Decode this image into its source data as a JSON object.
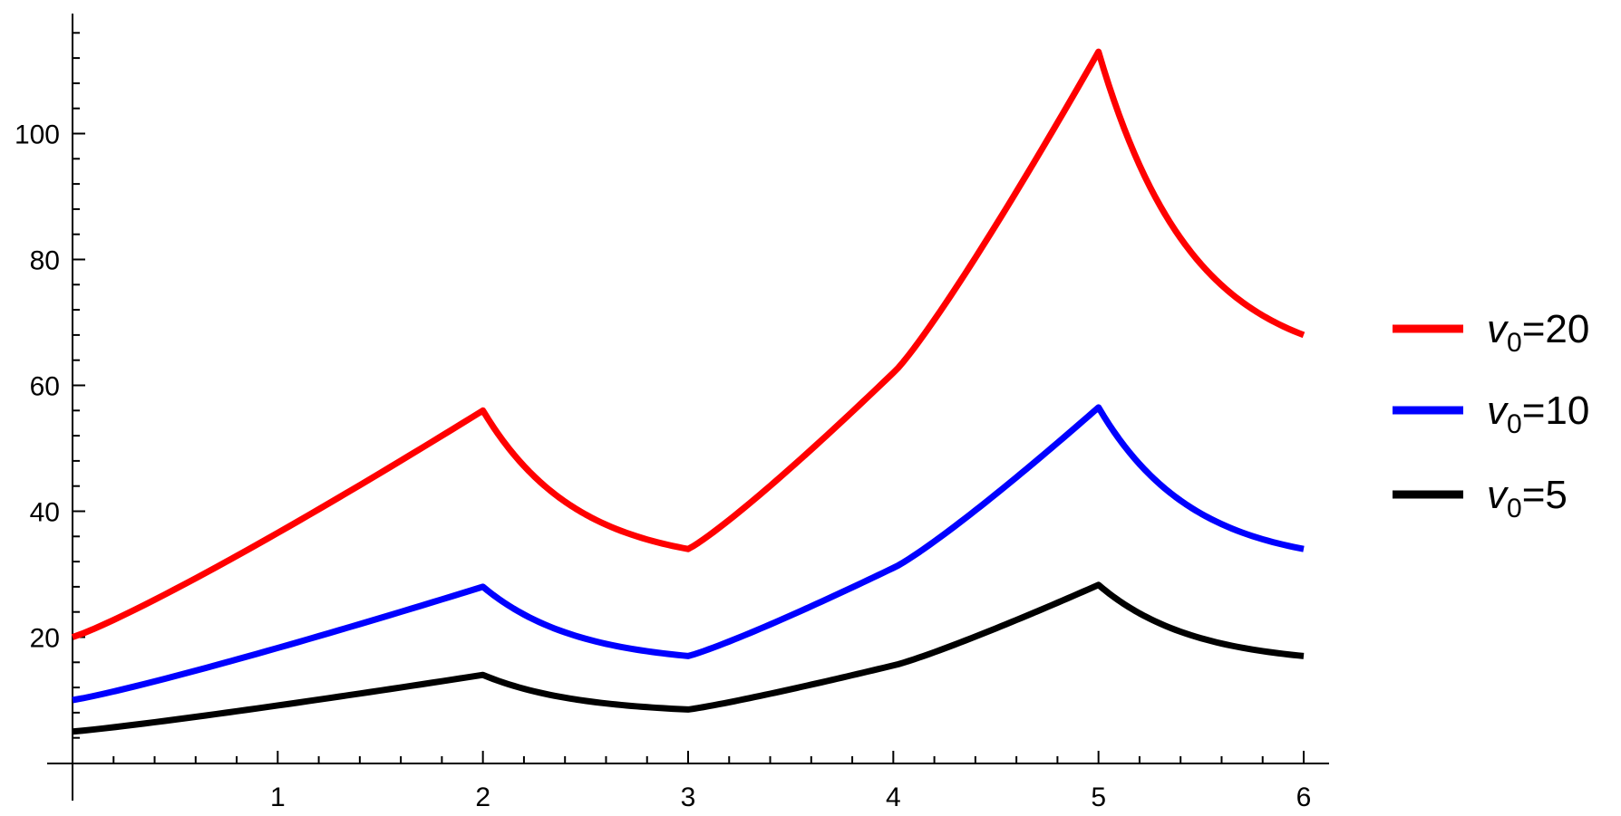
{
  "chart_data": {
    "type": "line",
    "title": "",
    "xlabel": "",
    "ylabel": "",
    "xlim": [
      -0.05,
      6.1
    ],
    "ylim": [
      -3,
      118
    ],
    "x_ticks": [
      1,
      2,
      3,
      4,
      5,
      6
    ],
    "y_ticks": [
      20,
      40,
      60,
      80,
      100
    ],
    "x_tick_labels": [
      "1",
      "2",
      "3",
      "4",
      "5",
      "6"
    ],
    "y_tick_labels": [
      "20",
      "40",
      "60",
      "80",
      "100"
    ],
    "grid": false,
    "legend_position": "right",
    "segments_x": [
      [
        0,
        2
      ],
      [
        2,
        3
      ],
      [
        3,
        4
      ],
      [
        4,
        5
      ],
      [
        5,
        6
      ]
    ],
    "segment_kinds": [
      "grow",
      "decay",
      "grow",
      "grow",
      "decay"
    ],
    "series": [
      {
        "name_base": "v",
        "name_sub": "0",
        "name_value": "=20",
        "color": "#ff0000",
        "breakpoints": [
          [
            0,
            20
          ],
          [
            2,
            56
          ],
          [
            3,
            34
          ],
          [
            4,
            62
          ],
          [
            5,
            113
          ],
          [
            6,
            68
          ]
        ]
      },
      {
        "name_base": "v",
        "name_sub": "0",
        "name_value": "=10",
        "color": "#0000ff",
        "breakpoints": [
          [
            0,
            10
          ],
          [
            2,
            28
          ],
          [
            3,
            17
          ],
          [
            4,
            31
          ],
          [
            5,
            56.5
          ],
          [
            6,
            34
          ]
        ]
      },
      {
        "name_base": "v",
        "name_sub": "0",
        "name_value": "=5",
        "color": "#000000",
        "breakpoints": [
          [
            0,
            5
          ],
          [
            2,
            14
          ],
          [
            3,
            8.5
          ],
          [
            4,
            15.5
          ],
          [
            5,
            28.3
          ],
          [
            6,
            17
          ]
        ]
      }
    ]
  }
}
